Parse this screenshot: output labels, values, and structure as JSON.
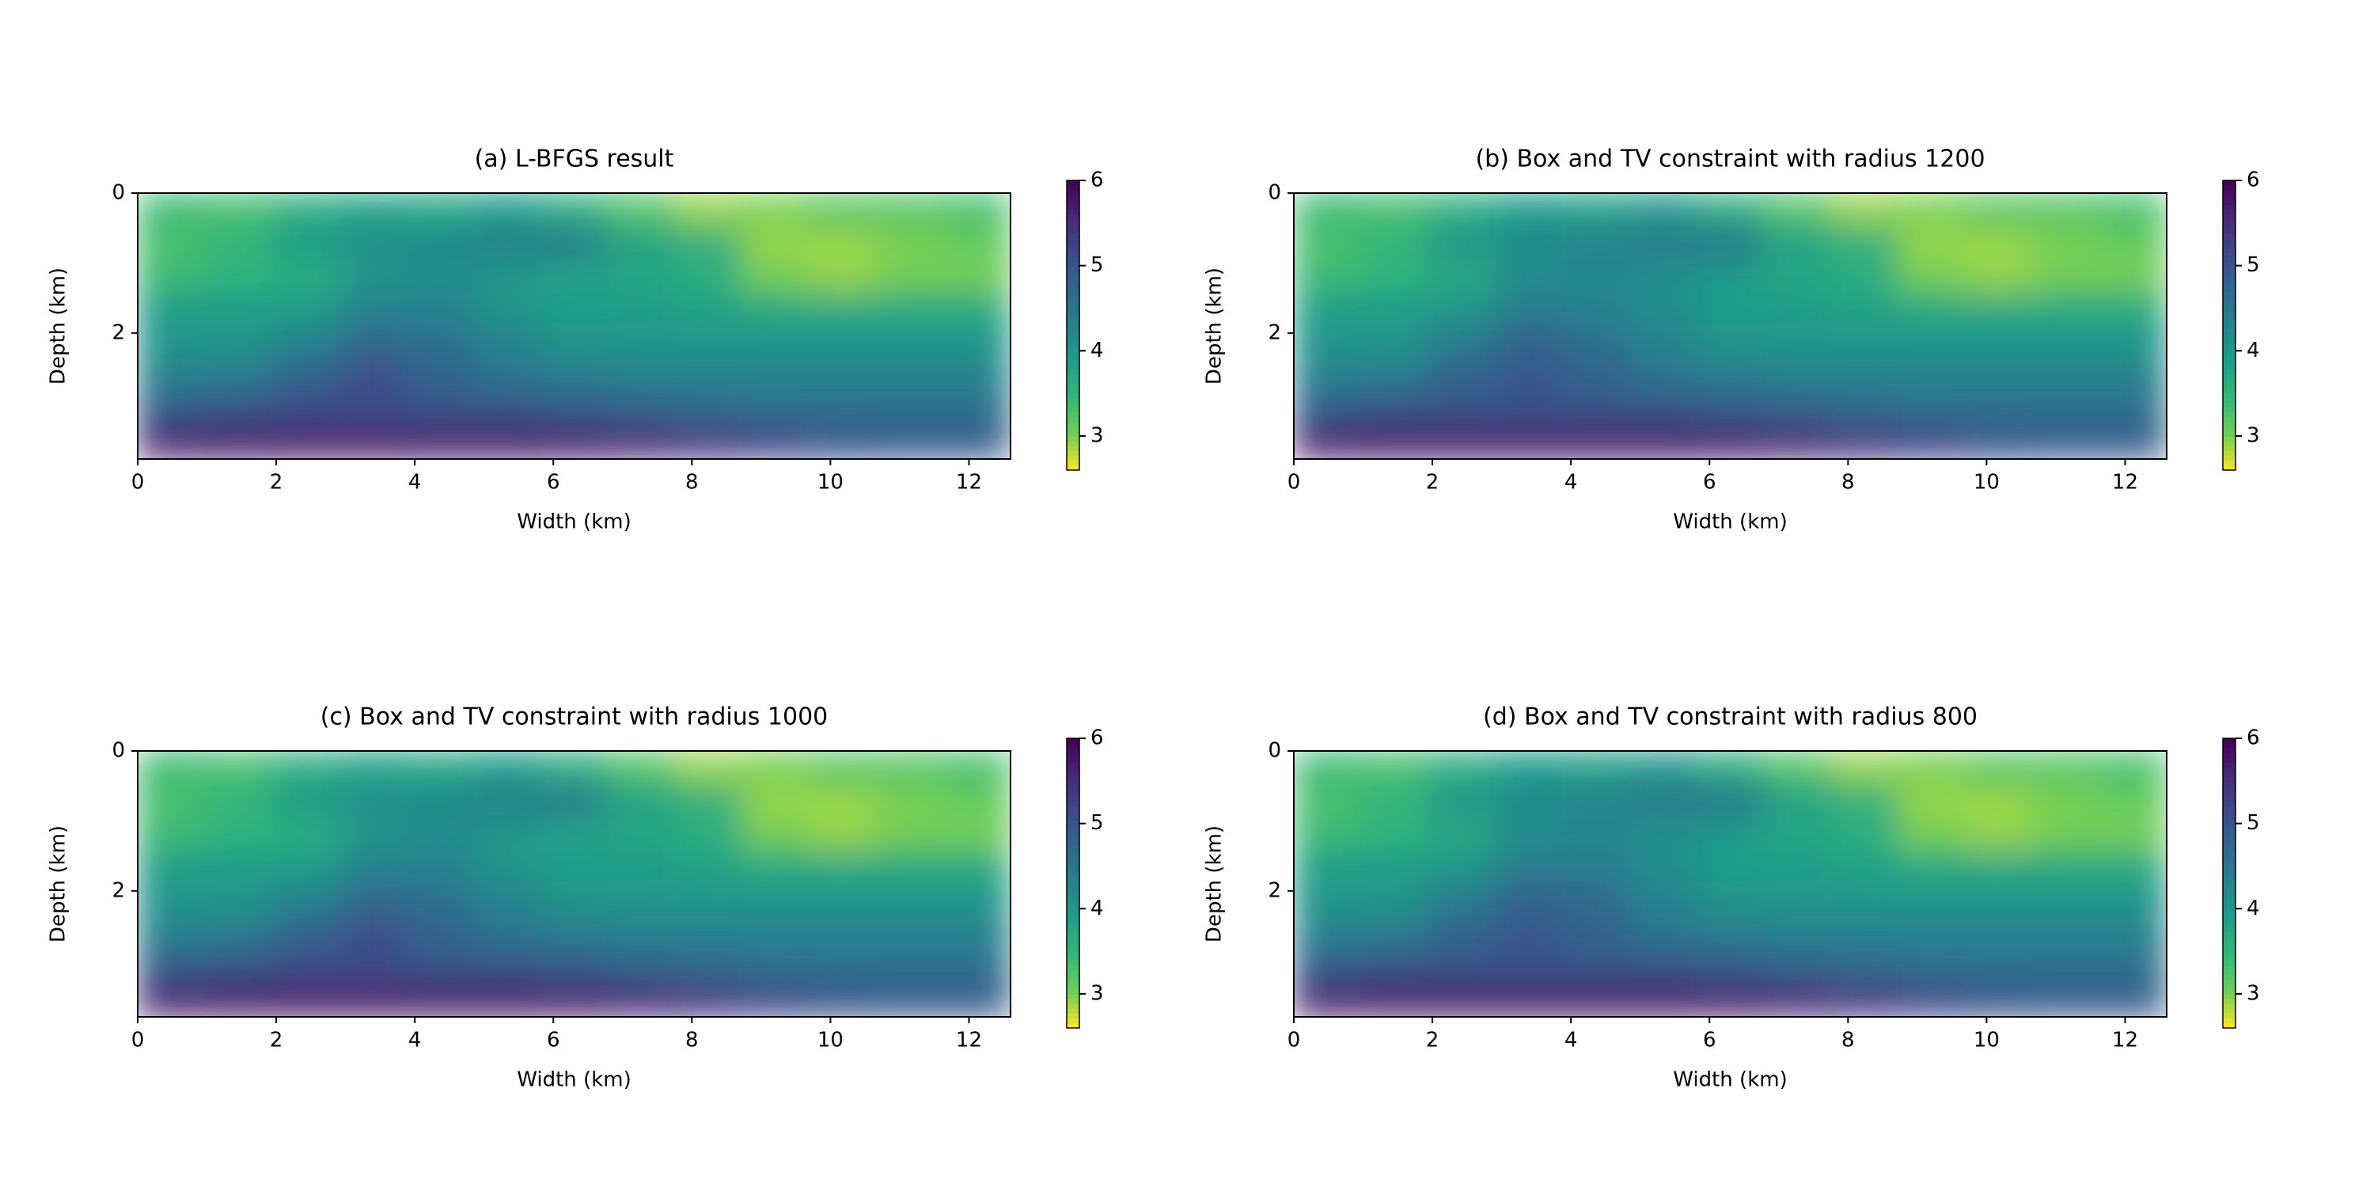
{
  "chart_data": [
    {
      "type": "heatmap",
      "title": "(a) L-BFGS result",
      "xlabel": "Width (km)",
      "ylabel": "Depth (km)",
      "xlim": [
        0,
        12.6
      ],
      "ylim": [
        0,
        3.8
      ],
      "y_inverted": true,
      "xticks": [
        0,
        2,
        4,
        6,
        8,
        10,
        12
      ],
      "yticks": [
        0,
        2
      ],
      "clim": [
        2.6,
        6
      ],
      "cticks": [
        3,
        4,
        5,
        6
      ],
      "colormap": "viridis_r",
      "z": [
        [
          3.4,
          3.3,
          3.6,
          3.8,
          3.7,
          3.9,
          3.6,
          3.2,
          2.9,
          3.0,
          3.2,
          3.2,
          3.3
        ],
        [
          3.3,
          3.5,
          3.9,
          4.1,
          4.2,
          4.3,
          4.4,
          3.8,
          3.6,
          2.9,
          2.9,
          3.0,
          3.1
        ],
        [
          3.4,
          3.5,
          3.6,
          4.0,
          4.1,
          4.0,
          3.8,
          3.7,
          3.6,
          3.0,
          2.9,
          3.0,
          3.0
        ],
        [
          3.9,
          3.9,
          3.9,
          4.3,
          4.3,
          4.0,
          3.9,
          3.9,
          3.8,
          3.7,
          3.7,
          3.7,
          3.7
        ],
        [
          4.0,
          4.0,
          4.3,
          4.7,
          4.6,
          4.3,
          4.0,
          4.0,
          4.0,
          4.0,
          4.0,
          4.0,
          4.0
        ],
        [
          4.3,
          4.4,
          4.8,
          5.1,
          4.8,
          4.5,
          4.4,
          4.3,
          4.3,
          4.3,
          4.3,
          4.3,
          4.3
        ],
        [
          4.9,
          5.0,
          5.1,
          5.1,
          5.0,
          5.0,
          4.9,
          4.8,
          4.7,
          4.6,
          4.6,
          4.6,
          4.6
        ],
        [
          5.7,
          5.8,
          5.8,
          5.8,
          5.8,
          5.8,
          5.7,
          5.6,
          5.4,
          5.2,
          5.0,
          4.9,
          4.9
        ]
      ]
    },
    {
      "type": "heatmap",
      "title": "(b) Box and TV constraint with radius 1200",
      "xlabel": "Width (km)",
      "ylabel": "Depth (km)",
      "xlim": [
        0,
        12.6
      ],
      "ylim": [
        0,
        3.8
      ],
      "y_inverted": true,
      "xticks": [
        0,
        2,
        4,
        6,
        8,
        10,
        12
      ],
      "yticks": [
        0,
        2
      ],
      "clim": [
        2.6,
        6
      ],
      "cticks": [
        3,
        4,
        5,
        6
      ],
      "colormap": "viridis_r",
      "z": [
        [
          3.4,
          3.3,
          3.6,
          3.9,
          3.8,
          4.0,
          3.6,
          3.2,
          2.9,
          3.0,
          3.2,
          3.2,
          3.3
        ],
        [
          3.3,
          3.5,
          4.0,
          4.2,
          4.3,
          4.4,
          4.5,
          3.8,
          3.6,
          2.9,
          2.9,
          3.0,
          3.1
        ],
        [
          3.4,
          3.5,
          3.7,
          4.1,
          4.2,
          4.1,
          3.9,
          3.7,
          3.6,
          3.0,
          2.9,
          3.0,
          3.0
        ],
        [
          3.9,
          3.9,
          4.0,
          4.4,
          4.3,
          4.1,
          3.9,
          3.9,
          3.8,
          3.7,
          3.7,
          3.7,
          3.7
        ],
        [
          4.0,
          4.0,
          4.4,
          4.8,
          4.6,
          4.3,
          4.0,
          4.0,
          4.0,
          4.0,
          4.0,
          4.0,
          4.0
        ],
        [
          4.3,
          4.4,
          4.8,
          5.0,
          4.8,
          4.5,
          4.4,
          4.3,
          4.3,
          4.3,
          4.3,
          4.3,
          4.3
        ],
        [
          4.9,
          5.0,
          5.0,
          5.0,
          5.0,
          5.0,
          4.9,
          4.8,
          4.7,
          4.6,
          4.6,
          4.6,
          4.6
        ],
        [
          5.7,
          5.8,
          5.8,
          5.8,
          5.8,
          5.8,
          5.7,
          5.6,
          5.4,
          5.2,
          5.0,
          4.9,
          4.9
        ]
      ]
    },
    {
      "type": "heatmap",
      "title": "(c) Box and TV constraint with radius 1000",
      "xlabel": "Width (km)",
      "ylabel": "Depth (km)",
      "xlim": [
        0,
        12.6
      ],
      "ylim": [
        0,
        3.8
      ],
      "y_inverted": true,
      "xticks": [
        0,
        2,
        4,
        6,
        8,
        10,
        12
      ],
      "yticks": [
        0,
        2
      ],
      "clim": [
        2.6,
        6
      ],
      "cticks": [
        3,
        4,
        5,
        6
      ],
      "colormap": "viridis_r",
      "z": [
        [
          3.4,
          3.3,
          3.6,
          3.8,
          3.7,
          3.9,
          3.6,
          3.2,
          2.9,
          3.0,
          3.2,
          3.2,
          3.3
        ],
        [
          3.3,
          3.5,
          3.9,
          4.1,
          4.2,
          4.3,
          4.4,
          3.8,
          3.6,
          2.9,
          2.9,
          3.0,
          3.1
        ],
        [
          3.4,
          3.5,
          3.6,
          4.0,
          4.1,
          4.0,
          3.8,
          3.7,
          3.6,
          3.0,
          2.9,
          3.0,
          3.0
        ],
        [
          3.9,
          3.9,
          3.9,
          4.3,
          4.3,
          4.0,
          3.9,
          3.9,
          3.8,
          3.7,
          3.7,
          3.7,
          3.7
        ],
        [
          4.0,
          4.0,
          4.3,
          4.7,
          4.6,
          4.3,
          4.0,
          4.0,
          4.0,
          4.0,
          4.0,
          4.0,
          4.0
        ],
        [
          4.3,
          4.4,
          4.8,
          5.1,
          4.8,
          4.5,
          4.4,
          4.3,
          4.3,
          4.3,
          4.3,
          4.3,
          4.3
        ],
        [
          4.9,
          5.0,
          5.1,
          5.1,
          5.0,
          5.0,
          4.9,
          4.8,
          4.7,
          4.6,
          4.6,
          4.6,
          4.6
        ],
        [
          5.7,
          5.8,
          5.8,
          5.8,
          5.8,
          5.8,
          5.7,
          5.6,
          5.4,
          5.2,
          5.0,
          4.9,
          4.9
        ]
      ]
    },
    {
      "type": "heatmap",
      "title": "(d) Box and TV constraint with radius 800",
      "xlabel": "Width (km)",
      "ylabel": "Depth (km)",
      "xlim": [
        0,
        12.6
      ],
      "ylim": [
        0,
        3.8
      ],
      "y_inverted": true,
      "xticks": [
        0,
        2,
        4,
        6,
        8,
        10,
        12
      ],
      "yticks": [
        0,
        2
      ],
      "clim": [
        2.6,
        6
      ],
      "cticks": [
        3,
        4,
        5,
        6
      ],
      "colormap": "viridis_r",
      "z": [
        [
          3.4,
          3.3,
          3.6,
          3.9,
          3.8,
          4.0,
          3.6,
          3.2,
          2.9,
          3.0,
          3.2,
          3.2,
          3.3
        ],
        [
          3.3,
          3.5,
          4.0,
          4.2,
          4.3,
          4.4,
          4.5,
          3.8,
          3.6,
          2.9,
          2.9,
          3.0,
          3.1
        ],
        [
          3.4,
          3.5,
          3.7,
          4.1,
          4.2,
          4.1,
          3.9,
          3.7,
          3.6,
          3.0,
          2.9,
          3.0,
          3.0
        ],
        [
          3.9,
          3.9,
          4.0,
          4.4,
          4.4,
          4.1,
          3.9,
          3.9,
          3.8,
          3.7,
          3.7,
          3.7,
          3.7
        ],
        [
          4.0,
          4.0,
          4.4,
          4.8,
          4.7,
          4.3,
          4.0,
          4.0,
          4.0,
          4.0,
          4.0,
          4.0,
          4.0
        ],
        [
          4.3,
          4.4,
          4.8,
          5.0,
          4.8,
          4.5,
          4.4,
          4.3,
          4.3,
          4.3,
          4.3,
          4.3,
          4.3
        ],
        [
          4.9,
          5.0,
          5.0,
          5.0,
          5.0,
          5.0,
          4.9,
          4.8,
          4.7,
          4.6,
          4.6,
          4.6,
          4.6
        ],
        [
          5.7,
          5.8,
          5.8,
          5.8,
          5.8,
          5.8,
          5.7,
          5.6,
          5.4,
          5.2,
          5.0,
          4.9,
          4.9
        ]
      ]
    }
  ]
}
